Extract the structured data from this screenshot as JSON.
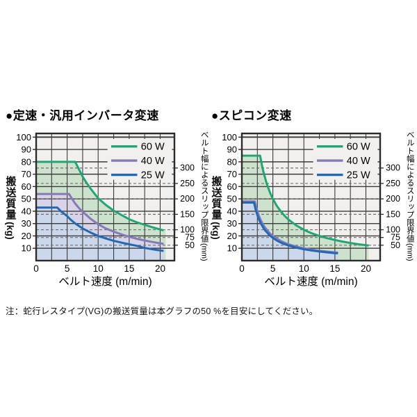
{
  "note": "注：蛇行レスタイプ(VG)の搬送質量は本グラフの50 %を目安にしてください。",
  "colors": {
    "plot_bg": "#f1f0ee",
    "grid": "#3a3a3a",
    "dash": "#6f6f6f",
    "border": "#2b2b2b",
    "text": "#000000"
  },
  "chart_data": [
    {
      "type": "area",
      "title": "●定速・汎用インバータ変速",
      "xlabel": "ベルト速度 (m/min)",
      "ylabel_main": "搬送質量",
      "ylabel_unit": "(kg)",
      "y2label_main": "ベルト幅によるスリップ限界値",
      "y2label_unit": "(mm)",
      "xlim": [
        0,
        22.3
      ],
      "ylim": [
        0,
        103
      ],
      "grid_x_step": 2.5,
      "xticks": [
        0,
        5,
        10,
        15,
        20
      ],
      "yticks": [
        10,
        20,
        30,
        40,
        50,
        60,
        70,
        80,
        90,
        100
      ],
      "dashed": [
        {
          "kg": 75,
          "label": "300"
        },
        {
          "kg": 62.5,
          "label": "250"
        },
        {
          "kg": 50,
          "label": "200"
        },
        {
          "kg": 37.5,
          "label": "150"
        },
        {
          "kg": 25,
          "label": "100"
        },
        {
          "kg": 18.75,
          "label": "75"
        },
        {
          "kg": 12.5,
          "label": "50"
        }
      ],
      "legend": [
        {
          "label": "60 W",
          "color": "#21a571"
        },
        {
          "label": "40 W",
          "color": "#8579b8"
        },
        {
          "label": "25 W",
          "color": "#2268b5"
        }
      ],
      "legend_rows_kg": [
        92.5,
        81,
        69.5
      ],
      "legend_line_x": [
        12.1,
        16.3
      ],
      "legend_text_x": 16.9,
      "legend_patch": {
        "x0": 11.5,
        "x1": 21.9,
        "y0": 65.5,
        "y1": 98.5
      },
      "series": [
        {
          "name": "60 W",
          "color": "#21a571",
          "fill": "#cde2cc",
          "fill_right": 20.9,
          "points": [
            [
              0,
              80
            ],
            [
              6.3,
              80
            ],
            [
              7,
              73
            ],
            [
              7.5,
              68
            ],
            [
              8,
              64
            ],
            [
              8.75,
              58.5
            ],
            [
              10,
              50.5
            ],
            [
              11.25,
              45
            ],
            [
              12.5,
              40.5
            ],
            [
              13.75,
              37
            ],
            [
              15,
              33.5
            ],
            [
              16.25,
              31
            ],
            [
              17.5,
              29
            ],
            [
              18.75,
              27
            ],
            [
              20,
              25.2
            ],
            [
              20.55,
              24.5
            ]
          ]
        },
        {
          "name": "40 W",
          "color": "#8579b8",
          "fill": "#d8d3e8",
          "fill_right": 20.55,
          "points": [
            [
              0,
              54
            ],
            [
              5.3,
              54
            ],
            [
              5.8,
              50
            ],
            [
              6.25,
              46.5
            ],
            [
              7,
              42
            ],
            [
              7.5,
              39.5
            ],
            [
              8.75,
              34
            ],
            [
              10,
              29.5
            ],
            [
              11.25,
              26
            ],
            [
              12.5,
              23.5
            ],
            [
              13.75,
              21.3
            ],
            [
              15,
              19.3
            ],
            [
              16.25,
              17.7
            ],
            [
              17.5,
              16.3
            ],
            [
              18.75,
              15.1
            ],
            [
              20,
              14
            ],
            [
              20.55,
              13.6
            ]
          ]
        },
        {
          "name": "25 W",
          "color": "#2268b5",
          "fill": "#cbd7eb",
          "fill_right": 20.55,
          "points": [
            [
              0,
              43
            ],
            [
              3.4,
              43
            ],
            [
              4,
              40
            ],
            [
              4.5,
              38
            ],
            [
              5,
              36
            ],
            [
              5.6,
              33
            ],
            [
              6.25,
              30.3
            ],
            [
              7.5,
              26
            ],
            [
              8.75,
              22.8
            ],
            [
              10,
              20
            ],
            [
              11.25,
              17.9
            ],
            [
              12.5,
              16.1
            ],
            [
              13.75,
              14.6
            ],
            [
              15,
              13.2
            ],
            [
              16.25,
              12
            ],
            [
              17.5,
              10.3
            ],
            [
              18.75,
              9.2
            ],
            [
              20,
              8.2
            ],
            [
              20.55,
              7.9
            ]
          ]
        }
      ]
    },
    {
      "type": "area",
      "title": "●スピコン変速",
      "xlabel": "ベルト速度 (m/min)",
      "ylabel_main": "搬送質量",
      "ylabel_unit": "(kg)",
      "y2label_main": "ベルト幅によるスリップ限界値",
      "y2label_unit": "(mm)",
      "xlim": [
        0,
        22.3
      ],
      "ylim": [
        0,
        103
      ],
      "grid_x_step": 2.5,
      "xticks": [
        0,
        5,
        10,
        15,
        20
      ],
      "yticks": [
        10,
        20,
        30,
        40,
        50,
        60,
        70,
        80,
        90,
        100
      ],
      "dashed": [
        {
          "kg": 75,
          "label": "300"
        },
        {
          "kg": 62.5,
          "label": "250"
        },
        {
          "kg": 50,
          "label": "200"
        },
        {
          "kg": 37.5,
          "label": "150"
        },
        {
          "kg": 25,
          "label": "100"
        },
        {
          "kg": 18.75,
          "label": "75"
        },
        {
          "kg": 12.5,
          "label": "50"
        }
      ],
      "legend": [
        {
          "label": "60 W",
          "color": "#21a571"
        },
        {
          "label": "40 W",
          "color": "#8579b8"
        },
        {
          "label": "25 W",
          "color": "#2268b5"
        }
      ],
      "legend_rows_kg": [
        92.5,
        81,
        69.5
      ],
      "legend_line_x": [
        12.1,
        16.3
      ],
      "legend_text_x": 16.9,
      "legend_patch": {
        "x0": 11.5,
        "x1": 21.9,
        "y0": 65.5,
        "y1": 98.5
      },
      "series": [
        {
          "name": "60 W",
          "color": "#21a571",
          "fill": "#cde2cc",
          "fill_right": 20.45,
          "points": [
            [
              0,
              85
            ],
            [
              2.95,
              85
            ],
            [
              3.25,
              77
            ],
            [
              3.5,
              71.5
            ],
            [
              4,
              62.5
            ],
            [
              4.5,
              55.5
            ],
            [
              5,
              50
            ],
            [
              5.6,
              44.6
            ],
            [
              6.25,
              40
            ],
            [
              7,
              35.7
            ],
            [
              7.5,
              33.3
            ],
            [
              8.75,
              28.6
            ],
            [
              10,
              25
            ],
            [
              11.25,
              22.2
            ],
            [
              12.5,
              20
            ],
            [
              13.75,
              18.2
            ],
            [
              15,
              16.7
            ],
            [
              16.25,
              15.4
            ],
            [
              17.5,
              14.3
            ],
            [
              18.75,
              13.3
            ],
            [
              20,
              12.5
            ],
            [
              20.45,
              12.2
            ]
          ]
        },
        {
          "name": "40 W",
          "color": "#8579b8",
          "fill": "#d8d3e8",
          "fill_right": 15.5,
          "points": [
            [
              0,
              48
            ],
            [
              2.08,
              48
            ],
            [
              2.3,
              43.5
            ],
            [
              2.5,
              40
            ],
            [
              2.75,
              36.4
            ],
            [
              3,
              33.3
            ],
            [
              3.5,
              28.6
            ],
            [
              3.75,
              26.7
            ],
            [
              4.5,
              22.2
            ],
            [
              5,
              20
            ],
            [
              5.6,
              17.9
            ],
            [
              6.25,
              16
            ],
            [
              7,
              14.3
            ],
            [
              7.5,
              13.3
            ],
            [
              8.75,
              11.4
            ],
            [
              10,
              10
            ],
            [
              11.25,
              8.9
            ],
            [
              12.5,
              8
            ],
            [
              13.75,
              7.3
            ],
            [
              15,
              6.7
            ],
            [
              15.5,
              6.5
            ]
          ]
        },
        {
          "name": "25 W",
          "color": "#2268b5",
          "fill": "#cbd7eb",
          "fill_right": 15.5,
          "points": [
            [
              0,
              47
            ],
            [
              1.96,
              47
            ],
            [
              2.2,
              41.8
            ],
            [
              2.5,
              36.8
            ],
            [
              2.75,
              33.5
            ],
            [
              3,
              30.7
            ],
            [
              3.5,
              26.3
            ],
            [
              3.75,
              24.5
            ],
            [
              4.5,
              20.4
            ],
            [
              5,
              18.4
            ],
            [
              5.6,
              16.4
            ],
            [
              6.25,
              14.7
            ],
            [
              7,
              13.1
            ],
            [
              7.5,
              12.3
            ],
            [
              8.75,
              10.5
            ],
            [
              10,
              9.2
            ],
            [
              11.25,
              8.2
            ],
            [
              12.5,
              7.4
            ],
            [
              13.75,
              6.7
            ],
            [
              15,
              6.1
            ],
            [
              15.5,
              5.9
            ]
          ]
        }
      ]
    }
  ]
}
